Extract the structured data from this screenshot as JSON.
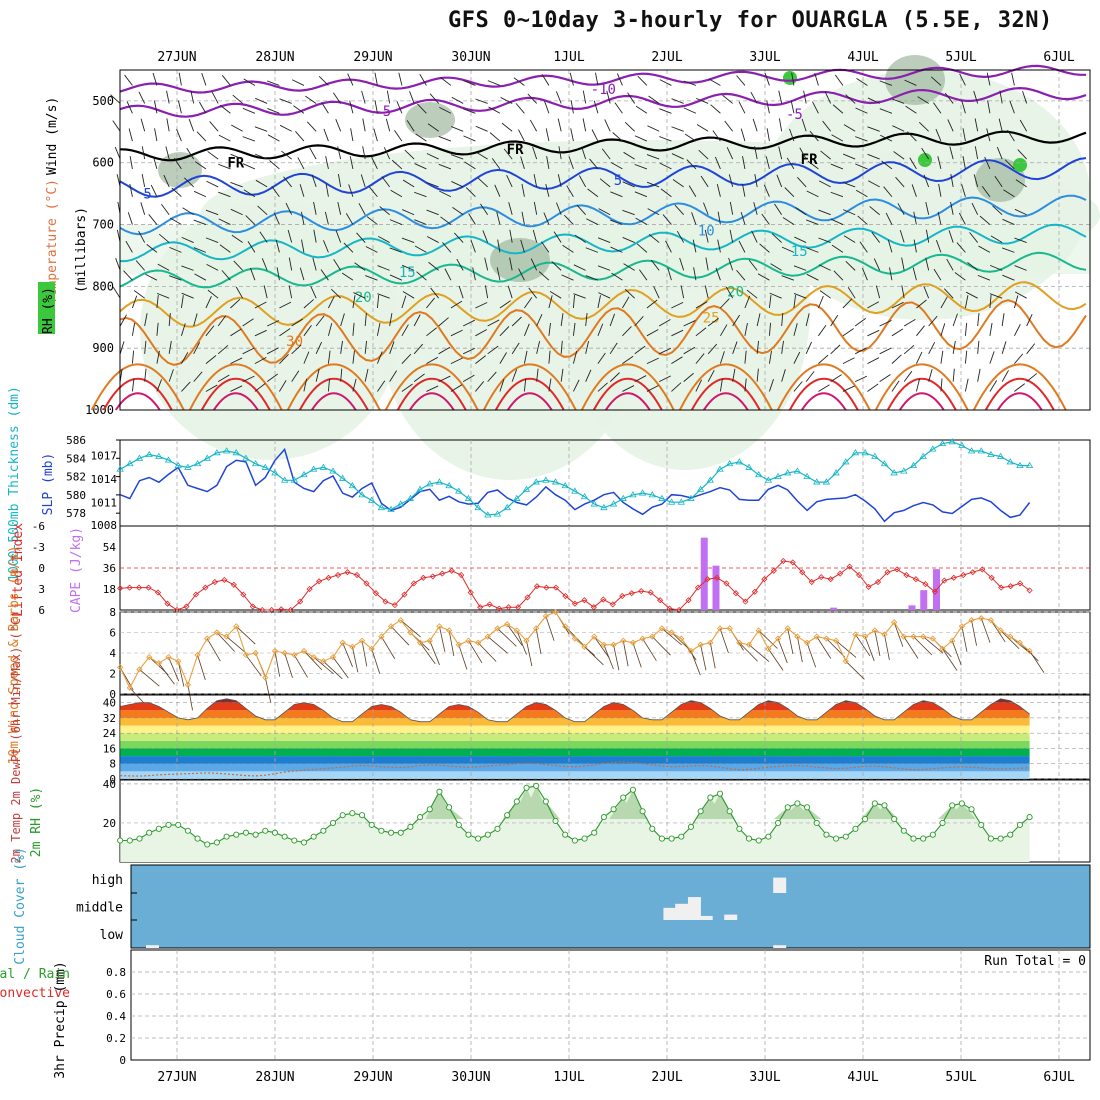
{
  "title": "GFS 0~10day 3-hourly for OUARGLA (5.5E, 32N)",
  "run_total_label": "Run Total = 0",
  "dates": [
    "27JUN",
    "28JUN",
    "29JUN",
    "30JUN",
    "1JUL",
    "2JUL",
    "3JUL",
    "4JUL",
    "5JUL",
    "6JUL"
  ],
  "colors": {
    "frame": "#000000",
    "grid": "#a8a8a8",
    "purple": "#8a1fb0",
    "blue": "#1f44d8",
    "cyan": "#16b6c6",
    "green": "#18b890",
    "orange": "#e0a020",
    "red": "#e02828",
    "rh_fill": "#e6f3e6",
    "cloud_bg": "#6aaed6",
    "cape": "#c070f0"
  },
  "chart_data": [
    {
      "type": "contour",
      "panel": "upper-air",
      "ylabel": "(millibars)",
      "legend_labels": [
        "Wind (m/s)",
        "Temperature (°C)",
        "RH (%)"
      ],
      "pressure_ticks": [
        500,
        600,
        700,
        800,
        900,
        1000
      ],
      "ylim": [
        450,
        1000
      ],
      "isotherm_labels": [
        {
          "text": "-10",
          "day": 5.35,
          "p": 481
        },
        {
          "text": "-5",
          "day": 3.1,
          "p": 516
        },
        {
          "text": "-5",
          "day": 7.3,
          "p": 521
        },
        {
          "text": "FR",
          "day": 4.45,
          "p": 578
        },
        {
          "text": "FR",
          "day": 1.6,
          "p": 600
        },
        {
          "text": "FR",
          "day": 7.45,
          "p": 594
        },
        {
          "text": "5",
          "day": 0.7,
          "p": 650
        },
        {
          "text": "5",
          "day": 5.5,
          "p": 628
        },
        {
          "text": "10",
          "day": 6.4,
          "p": 710
        },
        {
          "text": "15",
          "day": 3.35,
          "p": 777
        },
        {
          "text": "15",
          "day": 7.35,
          "p": 743
        },
        {
          "text": "20",
          "day": 2.9,
          "p": 817
        },
        {
          "text": "20",
          "day": 6.7,
          "p": 808
        },
        {
          "text": "25",
          "day": 6.45,
          "p": 850
        },
        {
          "text": "30",
          "day": 2.2,
          "p": 888
        }
      ]
    },
    {
      "type": "line",
      "panel": "slp-thickness",
      "ylabel_left": "1000-500mb Thickness (dm)",
      "ylabel_right": "SLP (mb)",
      "left_ticks": [
        578,
        580,
        582,
        584,
        586
      ],
      "right_ticks": [
        1011,
        1014,
        1017
      ],
      "bottom_label": "1008",
      "ylim_left": [
        576.6,
        586
      ],
      "ylim_right": [
        1008,
        1019
      ],
      "series": [
        {
          "name": "SLP",
          "axis": "right",
          "step_hours": 3,
          "values": [
            1012.0,
            1011.5,
            1013.8,
            1014.2,
            1013.6,
            1014.6,
            1015.5,
            1013.2,
            1012.8,
            1012.4,
            1013.2,
            1015.6,
            1016.4,
            1016.2,
            1013.2,
            1014.2,
            1016.4,
            1017.8,
            1013.6,
            1012.8,
            1012.4,
            1013.8,
            1014.4,
            1012.2,
            1011.7,
            1012.8,
            1013.5,
            1010.9,
            1010.0,
            1010.4,
            1011.4,
            1012.4,
            1012.7,
            1011.3,
            1011.8,
            1011.1,
            1010.8,
            1010.9,
            1012.3,
            1012.6,
            1011.6,
            1011.0,
            1010.7,
            1011.7,
            1013.0,
            1012.0,
            1011.3,
            1010.1,
            1010.8,
            1011.3,
            1012.0,
            1012.3,
            1011.0,
            1010.2,
            1009.5,
            1010.4,
            1010.8,
            1012.0,
            1011.9,
            1011.6,
            1012.0,
            1012.4,
            1012.9,
            1012.6,
            1011.4,
            1011.3,
            1011.3,
            1012.7,
            1013.2,
            1012.6,
            1011.2,
            1010.0,
            1011.1,
            1011.4,
            1011.5,
            1011.6,
            1012.0,
            1011.2,
            1010.2,
            1008.6,
            1009.7,
            1010.0,
            1010.6,
            1011.0,
            1010.7,
            1009.8,
            1009.6,
            1010.5,
            1011.4,
            1011.6,
            1011.1,
            1010.0,
            1009.1,
            1009.4,
            1011.0
          ]
        },
        {
          "name": "Thickness",
          "axis": "left",
          "step_hours": 3,
          "values": [
            582.8,
            583.4,
            584.0,
            584.4,
            584.2,
            583.8,
            583.2,
            583.0,
            583.4,
            584.0,
            584.6,
            584.8,
            584.6,
            584.0,
            583.4,
            583.0,
            582.4,
            581.6,
            581.6,
            582.2,
            582.8,
            583.0,
            582.6,
            581.8,
            581.0,
            580.0,
            579.4,
            578.6,
            578.4,
            579.0,
            579.6,
            580.6,
            581.2,
            581.4,
            581.0,
            580.4,
            579.6,
            578.6,
            577.8,
            577.9,
            578.6,
            579.6,
            580.6,
            581.4,
            581.6,
            581.4,
            581.0,
            580.4,
            579.8,
            579.0,
            578.6,
            579.0,
            579.6,
            580.0,
            580.2,
            580.0,
            579.6,
            579.2,
            579.2,
            579.6,
            580.6,
            581.6,
            582.8,
            583.4,
            583.6,
            583.0,
            582.2,
            581.6,
            582.0,
            582.4,
            582.6,
            582.0,
            581.4,
            581.4,
            582.4,
            583.6,
            584.6,
            584.6,
            584.2,
            583.4,
            582.4,
            582.6,
            583.2,
            584.2,
            585.0,
            585.6,
            585.8,
            585.4,
            584.8,
            584.8,
            584.4,
            584.2,
            583.6,
            583.2,
            583.2
          ]
        }
      ]
    },
    {
      "type": "line+bar",
      "panel": "lifted-index-cape",
      "ylabel_left": "Lifted Index",
      "ylabel_right": "CAPE (J/kg)",
      "li_ticks": [
        -6,
        -3,
        0,
        3,
        6
      ],
      "cape_ticks": [
        18,
        36,
        54
      ],
      "li_ylim": [
        -6,
        6
      ],
      "cape_ylim": [
        0,
        72
      ],
      "series": [
        {
          "name": "Lifted Index",
          "step_hours": 3,
          "values": [
            2.9,
            2.8,
            2.8,
            2.8,
            3.5,
            5.1,
            6.6,
            5.5,
            3.8,
            2.8,
            2.0,
            1.7,
            2.4,
            3.8,
            5.5,
            6.8,
            6.3,
            5.9,
            6.1,
            4.8,
            3.0,
            1.9,
            1.4,
            1.0,
            0.6,
            1.0,
            2.2,
            3.6,
            4.8,
            5.3,
            3.8,
            2.2,
            1.4,
            1.2,
            0.8,
            0.4,
            1.0,
            3.5,
            5.6,
            5.2,
            5.8,
            5.6,
            5.6,
            4.2,
            2.6,
            2.8,
            2.8,
            4.0,
            5.1,
            4.6,
            5.6,
            4.5,
            5.2,
            4.0,
            3.6,
            3.3,
            3.5,
            4.6,
            5.8,
            6.5,
            4.6,
            2.8,
            1.6,
            1.4,
            2.2,
            3.6,
            4.8,
            3.4,
            1.6,
            0.4,
            -1.0,
            -0.8,
            0.6,
            2.0,
            1.3,
            1.6,
            0.8,
            -0.2,
            1.0,
            2.7,
            2.0,
            0.6,
            0.2,
            1.0,
            1.6,
            2.3,
            3.4,
            1.8,
            1.4,
            1.0,
            0.6,
            0.2,
            1.4,
            2.8,
            2.6,
            2.2,
            3.2
          ]
        },
        {
          "name": "CAPE",
          "type": "bar",
          "values": [
            {
              "day": 6.38,
              "value": 62
            },
            {
              "day": 6.5,
              "value": 38
            },
            {
              "day": 7.7,
              "value": 2
            },
            {
              "day": 8.5,
              "value": 4
            },
            {
              "day": 8.62,
              "value": 17
            },
            {
              "day": 8.75,
              "value": 35
            }
          ]
        }
      ]
    },
    {
      "type": "line",
      "panel": "10m-wind",
      "ylabel": "10m Wind Speed & Barbs (m/s)",
      "ticks": [
        0,
        2,
        4,
        6,
        8
      ],
      "ylim": [
        0,
        8
      ],
      "series": [
        {
          "name": "Wind Speed",
          "step_hours": 3,
          "values": [
            2.6,
            0.6,
            2.4,
            3.6,
            3.0,
            3.6,
            3.2,
            0.9,
            3.8,
            5.4,
            6.0,
            5.6,
            6.6,
            3.8,
            4.0,
            1.6,
            4.2,
            4.0,
            3.8,
            4.2,
            3.6,
            3.2,
            3.6,
            5.0,
            4.6,
            5.2,
            4.4,
            5.6,
            6.6,
            7.2,
            6.0,
            5.0,
            5.2,
            6.6,
            6.2,
            4.8,
            5.2,
            5.0,
            5.6,
            6.4,
            6.8,
            6.2,
            5.2,
            6.4,
            7.6,
            8.0,
            6.6,
            5.4,
            4.6,
            5.6,
            4.8,
            4.8,
            5.2,
            5.0,
            5.4,
            5.6,
            6.4,
            6.0,
            5.4,
            4.2,
            4.8,
            5.0,
            6.4,
            6.4,
            5.0,
            4.8,
            6.2,
            4.4,
            5.4,
            6.4,
            5.6,
            5.0,
            5.6,
            5.4,
            5.2,
            3.2,
            5.8,
            5.6,
            6.2,
            5.8,
            7.0,
            5.6,
            5.6,
            5.6,
            5.4,
            4.4,
            5.2,
            6.6,
            7.2,
            7.4,
            7.2,
            6.2,
            5.6,
            5.0,
            4.2
          ]
        }
      ]
    },
    {
      "type": "area",
      "panel": "2m-temperature",
      "ylabel": "2m Temp 2m DewPt (6hr Min/Max) (°C)",
      "ticks": [
        0,
        8,
        16,
        24,
        32,
        40
      ],
      "ylim": [
        0,
        44
      ],
      "color_bands": [
        {
          "from": 0,
          "to": 4,
          "color": "#a6d6f6"
        },
        {
          "from": 4,
          "to": 8,
          "color": "#5aa8e8"
        },
        {
          "from": 8,
          "to": 12,
          "color": "#1c7ed0"
        },
        {
          "from": 12,
          "to": 16,
          "color": "#00b050"
        },
        {
          "from": 16,
          "to": 20,
          "color": "#7cd85c"
        },
        {
          "from": 20,
          "to": 24,
          "color": "#c8ec7c"
        },
        {
          "from": 24,
          "to": 28,
          "color": "#fff28a"
        },
        {
          "from": 28,
          "to": 32,
          "color": "#fbbb3a"
        },
        {
          "from": 32,
          "to": 36,
          "color": "#f47a1c"
        },
        {
          "from": 36,
          "to": 40,
          "color": "#e23a16"
        },
        {
          "from": 40,
          "to": 44,
          "color": "#8a2a2a"
        }
      ],
      "series": [
        {
          "name": "2m Temp",
          "step_hours": 3,
          "values": [
            38,
            39,
            40,
            40,
            38,
            35,
            32,
            31,
            32,
            37,
            41,
            42,
            41,
            37,
            33,
            31,
            31,
            35,
            39,
            40,
            39,
            36,
            32,
            30,
            30,
            34,
            38,
            39,
            38,
            35,
            31,
            30,
            30,
            34,
            38,
            39,
            38,
            35,
            31,
            30,
            30,
            34,
            38,
            40,
            39,
            36,
            32,
            30,
            30,
            34,
            38,
            40,
            39,
            36,
            32,
            31,
            31,
            35,
            39,
            41,
            40,
            37,
            33,
            31,
            31,
            35,
            39,
            41,
            40,
            37,
            33,
            31,
            31,
            35,
            39,
            41,
            40,
            37,
            33,
            31,
            31,
            35,
            39,
            41,
            40,
            37,
            33,
            31,
            31,
            35,
            39,
            42,
            41,
            38,
            34
          ]
        },
        {
          "name": "2m DewPt",
          "step_hours": 3,
          "values": [
            1.8,
            1.6,
            1.5,
            1.8,
            2.2,
            2.4,
            2.6,
            2.8,
            3.0,
            3.2,
            3.0,
            2.6,
            2.2,
            1.8,
            1.6,
            2.0,
            2.8,
            3.6,
            4.2,
            4.6,
            5.0,
            5.4,
            5.8,
            6.2,
            6.8,
            7.0,
            6.8,
            6.4,
            6.2,
            6.0,
            6.4,
            7.0,
            7.4,
            7.2,
            6.8,
            6.4,
            6.2,
            6.4,
            6.8,
            7.2,
            7.6,
            8.0,
            8.2,
            8.0,
            7.6,
            7.0,
            6.6,
            6.4,
            6.8,
            7.4,
            8.2,
            8.6,
            9.0,
            8.6,
            8.0,
            7.4,
            6.8,
            6.4,
            6.6,
            6.8,
            7.0,
            6.8,
            6.2,
            5.4,
            4.8,
            5.0,
            5.6,
            6.2,
            6.6,
            6.8,
            7.0,
            6.8,
            6.2,
            5.8,
            5.4,
            5.6,
            6.2,
            6.6,
            6.8,
            6.4,
            5.8,
            5.2,
            4.8,
            5.0,
            5.4,
            5.8,
            6.2,
            6.4,
            6.2,
            5.8,
            5.4,
            5.2,
            5.4,
            5.6,
            5.8
          ]
        }
      ]
    },
    {
      "type": "area",
      "panel": "2m-rh",
      "ylabel": "2m RH (%)",
      "ticks": [
        20,
        40
      ],
      "ylim": [
        0,
        42
      ],
      "series": [
        {
          "name": "2m RH",
          "step_hours": 3,
          "values": [
            11,
            11,
            12,
            15,
            17,
            19,
            19,
            16,
            12,
            9,
            10,
            13,
            14,
            15,
            14,
            16,
            15,
            13,
            11,
            10,
            13,
            16,
            20,
            24,
            25,
            24,
            19,
            16,
            15,
            15,
            18,
            23,
            27,
            36,
            28,
            19,
            14,
            12,
            14,
            17,
            24,
            31,
            38,
            39,
            31,
            21,
            14,
            11,
            12,
            15,
            23,
            27,
            33,
            37,
            26,
            17,
            12,
            12,
            13,
            18,
            26,
            33,
            35,
            26,
            17,
            12,
            11,
            13,
            20,
            28,
            30,
            28,
            20,
            14,
            12,
            13,
            17,
            22,
            30,
            29,
            22,
            16,
            12,
            12,
            14,
            20,
            29,
            30,
            27,
            19,
            12,
            12,
            14,
            19,
            23
          ]
        }
      ]
    },
    {
      "type": "bar",
      "panel": "cloud-cover",
      "ylabel": "Cloud Cover (%)",
      "levels": [
        "high",
        "middle",
        "low"
      ],
      "series": [
        {
          "name": "Cloud fraction",
          "values": [
            {
              "level": "low",
              "day": 0.75,
              "value": 10
            },
            {
              "level": "middle",
              "day": 6.03,
              "value": 45
            },
            {
              "level": "middle",
              "day": 6.15,
              "value": 60
            },
            {
              "level": "middle",
              "day": 6.28,
              "value": 85
            },
            {
              "level": "middle",
              "day": 6.4,
              "value": 15
            },
            {
              "level": "middle",
              "day": 6.65,
              "value": 20
            },
            {
              "level": "high",
              "day": 7.15,
              "value": 55
            },
            {
              "level": "low",
              "day": 7.15,
              "value": 10
            }
          ]
        }
      ]
    },
    {
      "type": "bar",
      "panel": "precip",
      "ylabel": "3hr Precip (mm)",
      "legend_labels": [
        "Total / Rain",
        "Convective"
      ],
      "ticks": [
        0,
        0.2,
        0.4,
        0.6,
        0.8
      ],
      "ylim": [
        0,
        1
      ],
      "series": [
        {
          "name": "Precip",
          "values": []
        }
      ]
    }
  ]
}
